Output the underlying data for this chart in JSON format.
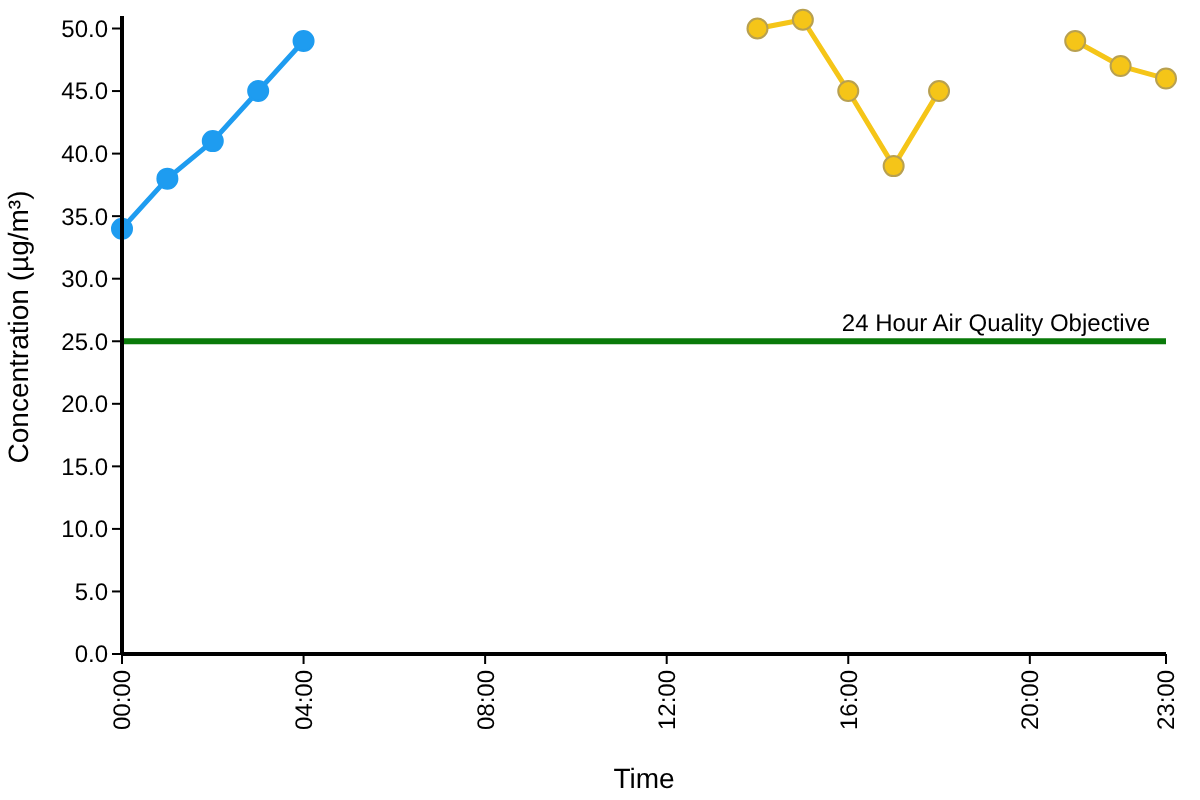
{
  "chart_data": {
    "type": "line",
    "xlabel": "Time",
    "ylabel": "Concentration (µg/m³)",
    "x": [
      0,
      1,
      2,
      3,
      4,
      5,
      6,
      7,
      8,
      9,
      10,
      11,
      12,
      13,
      14,
      15,
      16,
      17,
      18,
      19,
      20,
      21,
      22,
      23
    ],
    "series": [
      {
        "color": "#1e9cf0",
        "values": [
          34,
          38,
          41,
          45,
          49,
          null,
          null,
          null,
          null,
          null,
          null,
          null,
          null,
          null,
          null,
          null,
          null,
          null,
          null,
          null,
          null,
          null,
          null,
          null
        ]
      },
      {
        "color": "#f5c518",
        "values": [
          null,
          null,
          null,
          null,
          null,
          null,
          null,
          null,
          null,
          null,
          null,
          null,
          null,
          null,
          50,
          50.7,
          45,
          39,
          45,
          null,
          null,
          49,
          47,
          46
        ]
      }
    ],
    "xlim": [
      0,
      23
    ],
    "xticks": [
      {
        "value": 0,
        "label": "00:00"
      },
      {
        "value": 4,
        "label": "04:00"
      },
      {
        "value": 8,
        "label": "08:00"
      },
      {
        "value": 12,
        "label": "12:00"
      },
      {
        "value": 16,
        "label": "16:00"
      },
      {
        "value": 20,
        "label": "20:00"
      },
      {
        "value": 23,
        "label": "23:00"
      }
    ],
    "ylim": [
      0,
      51
    ],
    "yticks": [
      {
        "value": 0,
        "label": "0.0"
      },
      {
        "value": 5,
        "label": "5.0"
      },
      {
        "value": 10,
        "label": "10.0"
      },
      {
        "value": 15,
        "label": "15.0"
      },
      {
        "value": 20,
        "label": "20.0"
      },
      {
        "value": 25,
        "label": "25.0"
      },
      {
        "value": 30,
        "label": "30.0"
      },
      {
        "value": 35,
        "label": "35.0"
      },
      {
        "value": 40,
        "label": "40.0"
      },
      {
        "value": 45,
        "label": "45.0"
      },
      {
        "value": 50,
        "label": "50.0"
      }
    ],
    "ref_lines": [
      {
        "axis": "y",
        "value": 25,
        "label": "24 Hour Air Quality Objective",
        "color": "#0a7a0a"
      }
    ],
    "marker": "circle",
    "line_style": "solid"
  }
}
